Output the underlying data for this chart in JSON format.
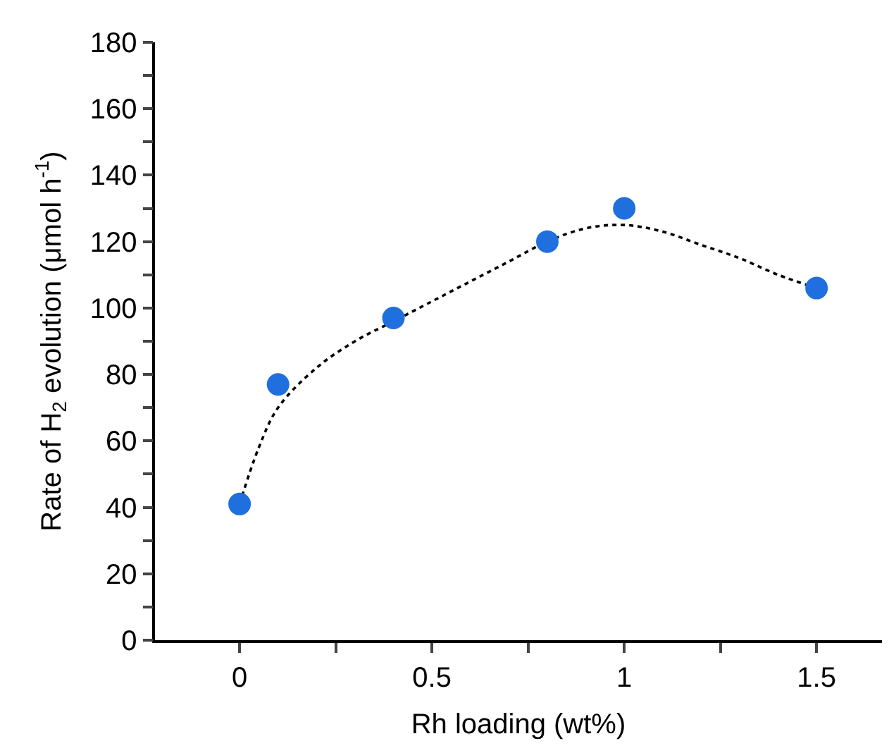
{
  "chart_data": {
    "type": "scatter",
    "xlabel": "Rh loading (wt%)",
    "ylabel": "Rate of H$_{2}$ evolution (μmol h$^{-1}$)",
    "xlim": [
      -0.22,
      1.67
    ],
    "ylim": [
      0,
      180
    ],
    "xticks": [
      0,
      {
        "value": 0.25,
        "label": null
      },
      0.5,
      {
        "value": 0.75,
        "label": null
      },
      1,
      {
        "value": 1.25,
        "label": null
      },
      1.5
    ],
    "yticks": [
      0,
      {
        "value": 10,
        "label": null
      },
      20,
      {
        "value": 30,
        "label": null
      },
      40,
      {
        "value": 50,
        "label": null
      },
      60,
      {
        "value": 70,
        "label": null
      },
      80,
      {
        "value": 90,
        "label": null
      },
      100,
      {
        "value": 110,
        "label": null
      },
      120,
      {
        "value": 130,
        "label": null
      },
      140,
      {
        "value": 150,
        "label": null
      },
      160,
      {
        "value": 170,
        "label": null
      },
      180
    ],
    "series": [
      {
        "type": "line",
        "color": "#000000",
        "marker": "none",
        "line_style": "dotted",
        "x": [
          0,
          0.05,
          0.1,
          0.2,
          0.3,
          0.4,
          0.5,
          0.6,
          0.7,
          0.8,
          0.9,
          1.0,
          1.1,
          1.2,
          1.3,
          1.4,
          1.5
        ],
        "values": [
          41,
          58,
          70,
          82,
          90,
          96,
          102,
          108,
          114,
          120,
          124,
          125,
          123,
          119,
          115,
          110,
          106
        ]
      },
      {
        "color": "#1f6fde",
        "marker": "circle",
        "x": [
          0,
          0.1,
          0.4,
          0.8,
          1.0,
          1.5
        ],
        "values": [
          41,
          77,
          97,
          120,
          130,
          106
        ]
      }
    ]
  }
}
